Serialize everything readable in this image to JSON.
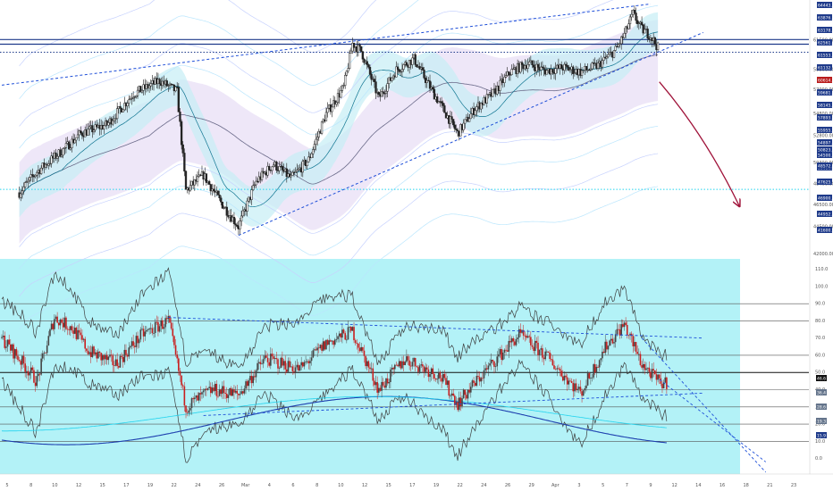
{
  "chart_data": [
    {
      "type": "candlestick",
      "panel": "price",
      "title": "",
      "scale": "linear",
      "ylim": [
        41800,
        65000
      ],
      "y_ticks": [
        42000,
        44500,
        46500,
        48400,
        50300,
        52800,
        54800,
        57000,
        58800,
        61500
      ],
      "badges": [
        {
          "label": "64443.69",
          "color": "#1e3a8a"
        },
        {
          "label": "63876.12",
          "color": "#1e3a8a"
        },
        {
          "label": "63178.86",
          "color": "#1e3a8a"
        },
        {
          "label": "62561.48",
          "color": "#1e3a8a"
        },
        {
          "label": "61553.61",
          "color": "#1e3a8a"
        },
        {
          "label": "61132.55",
          "color": "#1e3a8a"
        },
        {
          "label": "60614.23",
          "color": "#b91c1c"
        },
        {
          "label": "59681.00",
          "color": "#1e3a8a"
        },
        {
          "label": "58145.58",
          "color": "#1e3a8a"
        },
        {
          "label": "57893.53",
          "color": "#1e3a8a"
        },
        {
          "label": "55955.19",
          "color": "#1e3a8a"
        },
        {
          "label": "54897.33",
          "color": "#1e3a8a"
        },
        {
          "label": "54500.00",
          "color": "#1e3a8a"
        },
        {
          "label": "53630.00",
          "color": "#1e3a8a"
        },
        {
          "label": "50823.40",
          "color": "#1e3a8a"
        },
        {
          "label": "48572.83",
          "color": "#1e3a8a"
        },
        {
          "label": "47625.30",
          "color": "#1e3a8a"
        },
        {
          "label": "46900.00",
          "color": "#1e3a8a"
        },
        {
          "label": "44952.67",
          "color": "#1e3a8a"
        },
        {
          "label": "41600.00",
          "color": "#1e3a8a"
        }
      ],
      "anchor_points": [
        {
          "x": "Feb 3",
          "y": 47600
        },
        {
          "x": "Feb 5",
          "y": 49500
        },
        {
          "x": "Feb 8",
          "y": 51500
        },
        {
          "x": "Feb 10",
          "y": 53000
        },
        {
          "x": "Feb 13",
          "y": 53800
        },
        {
          "x": "Feb 16",
          "y": 56600
        },
        {
          "x": "Feb 19",
          "y": 57800
        },
        {
          "x": "Feb 21",
          "y": 56800
        },
        {
          "x": "Feb 22",
          "y": 47800
        },
        {
          "x": "Feb 24",
          "y": 49200
        },
        {
          "x": "Feb 26",
          "y": 46700
        },
        {
          "x": "Feb 28",
          "y": 44500
        },
        {
          "x": "Mar 2",
          "y": 48600
        },
        {
          "x": "Mar 4",
          "y": 50200
        },
        {
          "x": "Mar 6",
          "y": 48900
        },
        {
          "x": "Mar 8",
          "y": 50600
        },
        {
          "x": "Mar 10",
          "y": 54800
        },
        {
          "x": "Mar 12",
          "y": 57200
        },
        {
          "x": "Mar 13",
          "y": 61200
        },
        {
          "x": "Mar 14",
          "y": 60500
        },
        {
          "x": "Mar 16",
          "y": 56200
        },
        {
          "x": "Mar 18",
          "y": 58800
        },
        {
          "x": "Mar 20",
          "y": 59800
        },
        {
          "x": "Mar 22",
          "y": 57000
        },
        {
          "x": "Mar 25",
          "y": 53000
        },
        {
          "x": "Mar 27",
          "y": 55300
        },
        {
          "x": "Mar 29",
          "y": 56600
        },
        {
          "x": "Mar 31",
          "y": 58600
        },
        {
          "x": "Apr 2",
          "y": 59400
        },
        {
          "x": "Apr 4",
          "y": 58700
        },
        {
          "x": "Apr 6",
          "y": 59000
        },
        {
          "x": "Apr 8",
          "y": 58600
        },
        {
          "x": "Apr 10",
          "y": 59200
        },
        {
          "x": "Apr 12",
          "y": 60600
        },
        {
          "x": "Apr 13",
          "y": 62000
        },
        {
          "x": "Apr 14",
          "y": 63900
        },
        {
          "x": "Apr 15",
          "y": 62500
        },
        {
          "x": "Apr 16",
          "y": 61900
        },
        {
          "x": "Apr 17",
          "y": 60600
        }
      ],
      "levels": [
        {
          "value": 61553.61,
          "style": "solid",
          "color": "#1e3a8a"
        },
        {
          "value": 61132.55,
          "style": "solid",
          "color": "#1e3a8a"
        },
        {
          "value": 60400,
          "style": "dotted",
          "color": "#1e3a8a"
        },
        {
          "value": 47900,
          "style": "dotted",
          "color": "#22d3ee"
        }
      ],
      "trendlines": [
        {
          "from": {
            "x": "Feb 1",
            "y": 57400
          },
          "to": {
            "x": "Apr 16",
            "y": 64800
          }
        },
        {
          "from": {
            "x": "Feb 28",
            "y": 43700
          },
          "to": {
            "x": "Apr 22",
            "y": 62200
          }
        }
      ],
      "arrow": {
        "from": {
          "x": "Apr 17",
          "y": 57700
        },
        "to": {
          "x": "Apr 20",
          "y": 46400
        },
        "color": "#9f1239"
      }
    },
    {
      "type": "line",
      "panel": "oscillator",
      "title": "",
      "ylim": [
        -8,
        115
      ],
      "y_ticks": [
        0,
        10,
        20,
        30,
        40,
        50,
        60,
        70,
        80,
        90,
        100,
        110
      ],
      "y_tick_labels": [
        "0.0",
        "10.0",
        "20.0",
        "30.0",
        "40.0",
        "50.0",
        "60.0",
        "70.0",
        "80.0",
        "90.0",
        "100.0",
        "110.0"
      ],
      "value_badges": [
        {
          "label": "46.6",
          "color": "#111111"
        },
        {
          "label": "36.4",
          "color": "#64748b"
        },
        {
          "label": "28.6",
          "color": "#64748b"
        },
        {
          "label": "19.3",
          "color": "#64748b"
        },
        {
          "label": "15.9",
          "color": "#1e3a8a"
        }
      ],
      "anchor_points": [
        {
          "x": "Feb 1",
          "y": 70
        },
        {
          "x": "Feb 3",
          "y": 58
        },
        {
          "x": "Feb 5",
          "y": 45
        },
        {
          "x": "Feb 7",
          "y": 82
        },
        {
          "x": "Feb 9",
          "y": 76
        },
        {
          "x": "Feb 11",
          "y": 62
        },
        {
          "x": "Feb 14",
          "y": 55
        },
        {
          "x": "Feb 17",
          "y": 72
        },
        {
          "x": "Feb 20",
          "y": 80
        },
        {
          "x": "Feb 22",
          "y": 30
        },
        {
          "x": "Feb 25",
          "y": 40
        },
        {
          "x": "Feb 28",
          "y": 37
        },
        {
          "x": "Mar 3",
          "y": 58
        },
        {
          "x": "Mar 7",
          "y": 52
        },
        {
          "x": "Mar 10",
          "y": 67
        },
        {
          "x": "Mar 13",
          "y": 74
        },
        {
          "x": "Mar 16",
          "y": 40
        },
        {
          "x": "Mar 19",
          "y": 58
        },
        {
          "x": "Mar 23",
          "y": 48
        },
        {
          "x": "Mar 25",
          "y": 32
        },
        {
          "x": "Mar 28",
          "y": 50
        },
        {
          "x": "Apr 1",
          "y": 72
        },
        {
          "x": "Apr 4",
          "y": 60
        },
        {
          "x": "Apr 8",
          "y": 38
        },
        {
          "x": "Apr 11",
          "y": 66
        },
        {
          "x": "Apr 13",
          "y": 78
        },
        {
          "x": "Apr 15",
          "y": 55
        },
        {
          "x": "Apr 17",
          "y": 44
        }
      ],
      "levels": [
        {
          "value": 90,
          "style": "solid",
          "color": "#555555"
        },
        {
          "value": 80,
          "style": "solid",
          "color": "#555555"
        },
        {
          "value": 60,
          "style": "solid",
          "color": "#555555"
        },
        {
          "value": 50,
          "style": "solid",
          "color": "#111111"
        },
        {
          "value": 40,
          "style": "solid",
          "color": "#555555"
        },
        {
          "value": 30,
          "style": "solid",
          "color": "#555555"
        },
        {
          "value": 20,
          "style": "solid",
          "color": "#555555"
        },
        {
          "value": 10,
          "style": "solid",
          "color": "#555555"
        }
      ],
      "trendlines": [
        {
          "from": {
            "x": "Feb 20",
            "y": 82
          },
          "to": {
            "x": "Apr 22",
            "y": 70
          }
        },
        {
          "from": {
            "x": "Feb 24",
            "y": 25
          },
          "to": {
            "x": "Apr 22",
            "y": 38
          }
        }
      ],
      "projections": [
        {
          "from": {
            "x": "Apr 15",
            "y": 70
          },
          "to": {
            "x": "Apr 22",
            "y": -8
          }
        },
        {
          "from": {
            "x": "Apr 17",
            "y": 46
          },
          "to": {
            "x": "Apr 22",
            "y": -2
          }
        }
      ]
    }
  ],
  "x_axis": {
    "tick_labels": [
      "5",
      "8",
      "10",
      "12",
      "15",
      "17",
      "19",
      "22",
      "24",
      "26",
      "Mar",
      "4",
      "6",
      "8",
      "10",
      "12",
      "15",
      "17",
      "19",
      "22",
      "24",
      "26",
      "29",
      "Apr",
      "3",
      "5",
      "7",
      "9",
      "12",
      "14",
      "16",
      "18",
      "21",
      "23"
    ]
  },
  "colors": {
    "oscillator_bg": "#b3f2f7",
    "cloud_purple": "#e8dff5",
    "cloud_cyan": "#c6eef5",
    "candle_up": "#222222",
    "osc_candle_up": "#444444",
    "osc_candle_down": "#c81e1e",
    "trendline": "#1d4ed8",
    "horizontal_level": "#1e3a8a",
    "arrow": "#9f1239"
  }
}
